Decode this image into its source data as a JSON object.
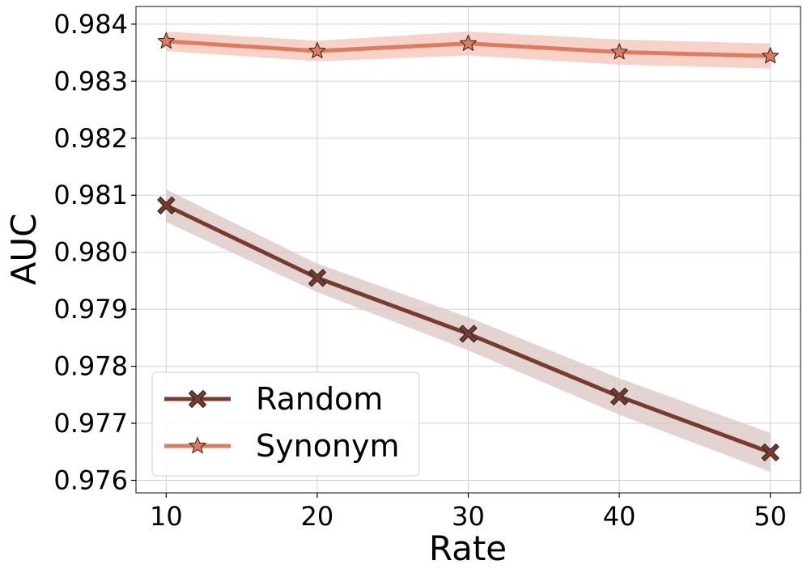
{
  "chart_data": {
    "type": "line",
    "title": "",
    "xlabel": "Rate",
    "ylabel": "AUC",
    "x": [
      10,
      20,
      30,
      40,
      50
    ],
    "xticks": [
      "10",
      "20",
      "30",
      "40",
      "50"
    ],
    "yticks": [
      "0.976",
      "0.977",
      "0.978",
      "0.979",
      "0.980",
      "0.981",
      "0.982",
      "0.983",
      "0.984"
    ],
    "xlim": [
      8,
      52
    ],
    "ylim": [
      0.97578,
      0.98431
    ],
    "grid": true,
    "legend_position": "bottom-left",
    "series": [
      {
        "name": "Random",
        "marker": "x",
        "color": "#7a3b2e",
        "band_color": "#d9c5c3",
        "values": [
          0.98082,
          0.97955,
          0.97857,
          0.97747,
          0.97649
        ],
        "lower": [
          0.98053,
          0.9793,
          0.97828,
          0.97715,
          0.97615
        ],
        "upper": [
          0.9811,
          0.9798,
          0.97886,
          0.97779,
          0.97683
        ]
      },
      {
        "name": "Synonym",
        "marker": "star",
        "color": "#e07a5f",
        "band_color": "#f4c3b5",
        "values": [
          0.9837,
          0.98353,
          0.98366,
          0.98351,
          0.98344
        ],
        "lower": [
          0.98353,
          0.98335,
          0.98345,
          0.98329,
          0.98322
        ],
        "upper": [
          0.98387,
          0.98371,
          0.98387,
          0.98373,
          0.98366
        ]
      }
    ]
  }
}
